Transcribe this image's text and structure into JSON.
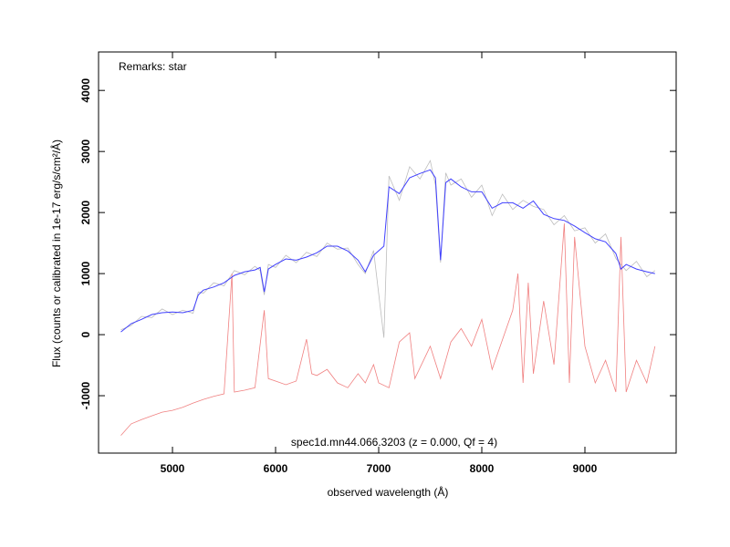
{
  "chart_data": {
    "type": "line",
    "remark": "Remarks: star",
    "annotation": "spec1d.mn44.066.3203 (z = 0.000, Qf = 4)",
    "x_label": "observed wavelength (Å)",
    "y_label": "Flux (counts or calibrated in 1e-17 erg/s/cm²/Å)",
    "xlim": [
      4283,
      9885
    ],
    "ylim": [
      -1940,
      4630
    ],
    "xticks": [
      5000,
      6000,
      7000,
      8000,
      9000
    ],
    "yticks": [
      -1000,
      0,
      1000,
      2000,
      3000,
      4000
    ],
    "series": [
      {
        "color": "#bdbdbd",
        "x": [
          4500,
          4600,
          4700,
          4800,
          4900,
          5000,
          5100,
          5200,
          5250,
          5300,
          5400,
          5500,
          5600,
          5700,
          5800,
          5850,
          5890,
          5930,
          6000,
          6100,
          6200,
          6300,
          6400,
          6500,
          6600,
          6700,
          6800,
          6870,
          6950,
          7050,
          7100,
          7200,
          7300,
          7400,
          7500,
          7550,
          7600,
          7650,
          7700,
          7800,
          7900,
          8000,
          8100,
          8200,
          8300,
          8400,
          8500,
          8600,
          8700,
          8800,
          8900,
          9000,
          9100,
          9200,
          9300,
          9350,
          9400,
          9500,
          9600,
          9680
        ],
        "values": [
          80,
          150,
          300,
          280,
          420,
          330,
          400,
          350,
          700,
          680,
          850,
          800,
          1050,
          980,
          1120,
          1050,
          650,
          1150,
          1100,
          1300,
          1180,
          1350,
          1280,
          1500,
          1400,
          1420,
          1150,
          1000,
          1380,
          -50,
          2600,
          2200,
          2750,
          2550,
          2850,
          2450,
          1180,
          2650,
          2450,
          2550,
          2250,
          2450,
          1950,
          2300,
          2050,
          2200,
          2100,
          2050,
          1800,
          1950,
          1700,
          1750,
          1500,
          1650,
          1250,
          1150,
          1050,
          1200,
          950,
          1050
        ]
      },
      {
        "color": "#f08080",
        "x": [
          4500,
          4600,
          4700,
          4800,
          4900,
          5000,
          5100,
          5200,
          5300,
          5400,
          5500,
          5577,
          5600,
          5700,
          5800,
          5890,
          5930,
          6000,
          6100,
          6200,
          6300,
          6350,
          6400,
          6500,
          6600,
          6700,
          6800,
          6870,
          6950,
          7000,
          7100,
          7200,
          7300,
          7350,
          7500,
          7600,
          7700,
          7800,
          7900,
          8000,
          8100,
          8300,
          8350,
          8400,
          8450,
          8500,
          8600,
          8700,
          8800,
          8850,
          8900,
          9000,
          9100,
          9200,
          9300,
          9350,
          9400,
          9500,
          9600,
          9680
        ],
        "values": [
          -1650,
          -1460,
          -1390,
          -1330,
          -1270,
          -1240,
          -1190,
          -1120,
          -1060,
          -1010,
          -970,
          1000,
          -940,
          -910,
          -870,
          400,
          -720,
          -760,
          -820,
          -760,
          -75,
          -640,
          -670,
          -570,
          -790,
          -870,
          -640,
          -790,
          -490,
          -790,
          -870,
          -120,
          30,
          -720,
          -190,
          -720,
          -120,
          100,
          -190,
          250,
          -570,
          400,
          1000,
          -790,
          850,
          -640,
          550,
          -490,
          1820,
          -790,
          1600,
          -190,
          -790,
          -420,
          -940,
          1600,
          -940,
          -420,
          -790,
          -190
        ]
      },
      {
        "color": "#4040ff",
        "x": [
          4500,
          4600,
          4700,
          4800,
          4900,
          5000,
          5100,
          5200,
          5250,
          5300,
          5400,
          5500,
          5600,
          5700,
          5800,
          5850,
          5890,
          5930,
          6000,
          6100,
          6200,
          6300,
          6400,
          6500,
          6600,
          6700,
          6800,
          6870,
          6950,
          7050,
          7100,
          7200,
          7300,
          7400,
          7500,
          7550,
          7600,
          7650,
          7700,
          7800,
          7900,
          8000,
          8100,
          8200,
          8300,
          8400,
          8500,
          8600,
          8700,
          8800,
          8900,
          9000,
          9100,
          9200,
          9300,
          9350,
          9400,
          9500,
          9600,
          9680
        ],
        "values": [
          45,
          180,
          250,
          330,
          360,
          370,
          360,
          400,
          650,
          730,
          780,
          850,
          970,
          1030,
          1060,
          1100,
          700,
          1075,
          1150,
          1240,
          1220,
          1270,
          1340,
          1450,
          1450,
          1370,
          1220,
          1030,
          1300,
          1450,
          2420,
          2310,
          2570,
          2640,
          2700,
          2570,
          1220,
          2490,
          2550,
          2420,
          2340,
          2340,
          2070,
          2160,
          2160,
          2070,
          2190,
          1970,
          1900,
          1870,
          1780,
          1670,
          1570,
          1520,
          1330,
          1075,
          1150,
          1075,
          1030,
          1000
        ]
      }
    ]
  }
}
